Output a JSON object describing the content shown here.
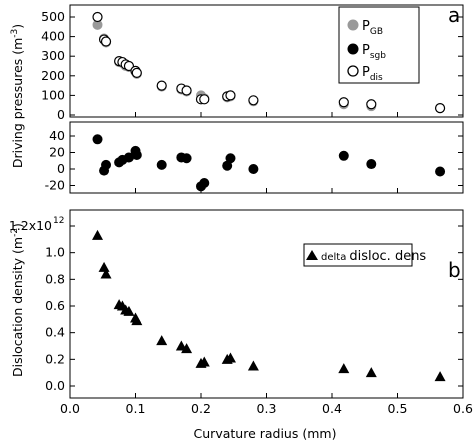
{
  "chart_data": [
    {
      "panel": "a",
      "type": "scatter",
      "ylabel": "Driving pressures (m",
      "ylabel_exp": "-3",
      "ylabel_close": ")",
      "ylim_upper": [
        0,
        500
      ],
      "ylim_lower": [
        -20,
        40
      ],
      "upper_yticks": [
        "0",
        "100",
        "200",
        "300",
        "400",
        "500"
      ],
      "lower_yticks": [
        "-20",
        "0",
        "20",
        "40"
      ],
      "yticks_upper_vals": [
        0,
        100,
        200,
        300,
        400,
        500
      ],
      "yticks_lower_vals": [
        -20,
        0,
        20,
        40
      ],
      "legend": "top-right",
      "series": [
        {
          "name": "P",
          "name_sub": "GB",
          "color": "#999999",
          "marker": "filled-circle",
          "axis": "upper",
          "x": [
            0.042,
            0.052,
            0.055,
            0.075,
            0.08,
            0.085,
            0.09,
            0.1,
            0.102,
            0.14,
            0.17,
            0.178,
            0.2,
            0.205,
            0.24,
            0.245,
            0.28,
            0.418,
            0.46,
            0.565
          ],
          "y": [
            460,
            390,
            370,
            270,
            265,
            250,
            245,
            220,
            210,
            145,
            130,
            120,
            100,
            85,
            90,
            95,
            70,
            55,
            45,
            35
          ]
        },
        {
          "name": "P",
          "name_sub": "sgb",
          "color": "#000000",
          "marker": "filled-circle",
          "axis": "lower",
          "x": [
            0.042,
            0.052,
            0.055,
            0.075,
            0.08,
            0.09,
            0.1,
            0.102,
            0.14,
            0.17,
            0.178,
            0.2,
            0.205,
            0.24,
            0.245,
            0.28,
            0.418,
            0.46,
            0.565
          ],
          "y": [
            36,
            -2,
            5,
            8,
            11,
            14,
            22,
            17,
            5,
            14,
            13,
            -21,
            -17,
            4,
            13,
            0,
            16,
            6,
            -3
          ]
        },
        {
          "name": "P",
          "name_sub": "dis",
          "color": "#000000",
          "marker": "open-circle",
          "axis": "upper",
          "x": [
            0.042,
            0.052,
            0.055,
            0.075,
            0.08,
            0.085,
            0.09,
            0.1,
            0.102,
            0.14,
            0.17,
            0.178,
            0.2,
            0.205,
            0.24,
            0.245,
            0.28,
            0.418,
            0.46,
            0.565
          ],
          "y": [
            500,
            385,
            375,
            275,
            270,
            258,
            250,
            225,
            215,
            150,
            135,
            125,
            80,
            80,
            95,
            100,
            75,
            65,
            55,
            35
          ]
        }
      ]
    },
    {
      "panel": "b",
      "type": "scatter",
      "xlabel": "Curvature radius (mm)",
      "ylabel": "Dislocation density  (m",
      "ylabel_exp": "-2",
      "ylabel_close": ")",
      "xlim": [
        0,
        0.6
      ],
      "ylim": [
        0,
        1200000000000.0
      ],
      "xticks": [
        "0.0",
        "0.1",
        "0.2",
        "0.3",
        "0.4",
        "0.5",
        "0.6"
      ],
      "xticks_vals": [
        0,
        0.1,
        0.2,
        0.3,
        0.4,
        0.5,
        0.6
      ],
      "yticks": [
        "0.0",
        "0.2",
        "0.4",
        "0.6",
        "0.8",
        "1.0",
        "1.2x10"
      ],
      "yticks_vals": [
        0,
        200000000000.0,
        400000000000.0,
        600000000000.0,
        800000000000.0,
        1000000000000.0,
        1200000000000.0
      ],
      "ytick_top_exp": "12",
      "legend": "top-right",
      "series": [
        {
          "name_prefix": "delta",
          "name": "disloc. dens",
          "color": "#000000",
          "marker": "filled-triangle",
          "x": [
            0.042,
            0.052,
            0.055,
            0.075,
            0.08,
            0.085,
            0.09,
            0.1,
            0.102,
            0.14,
            0.17,
            0.178,
            0.2,
            0.205,
            0.24,
            0.245,
            0.28,
            0.418,
            0.46,
            0.565
          ],
          "y": [
            1130000000000.0,
            890000000000.0,
            840000000000.0,
            610000000000.0,
            600000000000.0,
            570000000000.0,
            560000000000.0,
            510000000000.0,
            490000000000.0,
            340000000000.0,
            300000000000.0,
            280000000000.0,
            170000000000.0,
            180000000000.0,
            200000000000.0,
            210000000000.0,
            150000000000.0,
            130000000000.0,
            100000000000.0,
            70000000000.0
          ]
        }
      ]
    }
  ]
}
